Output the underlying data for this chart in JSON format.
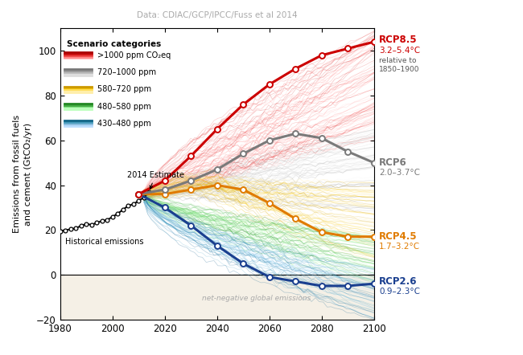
{
  "title": "Data: CDIAC/GCP/IPCC/Fuss et al 2014",
  "ylabel": "Emissions from fossil fuels\nand cement (GtCO₂/yr)",
  "xlim": [
    1980,
    2100
  ],
  "ylim": [
    -20,
    110
  ],
  "yticks": [
    -20,
    0,
    20,
    40,
    60,
    80,
    100
  ],
  "xticks": [
    1980,
    2000,
    2020,
    2040,
    2060,
    2080,
    2100
  ],
  "bg_negative_color": "#f5f0e6",
  "rcp85": {
    "years": [
      2010,
      2020,
      2030,
      2040,
      2050,
      2060,
      2070,
      2080,
      2090,
      2100
    ],
    "values": [
      36,
      42,
      53,
      65,
      76,
      85,
      92,
      98,
      101,
      104
    ],
    "color": "#cc0000",
    "label": "RCP8.5",
    "temp": "3.2–5.4°C"
  },
  "rcp6": {
    "years": [
      2010,
      2020,
      2030,
      2040,
      2050,
      2060,
      2070,
      2080,
      2090,
      2100
    ],
    "values": [
      36,
      38,
      42,
      47,
      54,
      60,
      63,
      61,
      55,
      50
    ],
    "color": "#7a7a7a",
    "label": "RCP6",
    "temp": "2.0–3.7°C"
  },
  "rcp45": {
    "years": [
      2010,
      2020,
      2030,
      2040,
      2050,
      2060,
      2070,
      2080,
      2090,
      2100
    ],
    "values": [
      36,
      36,
      38,
      40,
      38,
      32,
      25,
      19,
      17,
      17
    ],
    "color": "#e07b00",
    "label": "RCP4.5",
    "temp": "1.7–3.2°C"
  },
  "rcp26": {
    "years": [
      2010,
      2020,
      2030,
      2040,
      2050,
      2060,
      2070,
      2080,
      2090,
      2100
    ],
    "values": [
      36,
      30,
      22,
      13,
      5,
      -1,
      -3,
      -5,
      -5,
      -4
    ],
    "color": "#1a3f8f",
    "label": "RCP2.6",
    "temp": "0.9–2.3°C"
  },
  "historical": {
    "years": [
      1980,
      1982,
      1984,
      1986,
      1988,
      1990,
      1992,
      1994,
      1996,
      1998,
      2000,
      2002,
      2004,
      2006,
      2008,
      2010,
      2012,
      2014
    ],
    "values": [
      19.5,
      19.9,
      20.3,
      20.8,
      21.8,
      22.7,
      22.3,
      23.2,
      24.0,
      24.5,
      25.8,
      27.3,
      29.0,
      30.8,
      31.5,
      33.0,
      34.5,
      37.0
    ],
    "color": "#000000"
  },
  "legend_items": [
    {
      "label": ">1000 ppm CO₂eq",
      "colors": [
        "#ffbbbb",
        "#ff8888",
        "#ee4444",
        "#cc1111",
        "#aa0000"
      ]
    },
    {
      "label": "720–1000 ppm",
      "colors": [
        "#dddddd",
        "#bbbbbb",
        "#999999",
        "#777777"
      ]
    },
    {
      "label": "580–720 ppm",
      "colors": [
        "#ffeeaa",
        "#ffdd55",
        "#eebb00",
        "#cc9900"
      ]
    },
    {
      "label": "480–580 ppm",
      "colors": [
        "#bbffbb",
        "#77dd77",
        "#44aa44",
        "#228822"
      ]
    },
    {
      "label": "430–480 ppm",
      "colors": [
        "#bbddff",
        "#88bbdd",
        "#4499bb",
        "#116688"
      ]
    }
  ]
}
